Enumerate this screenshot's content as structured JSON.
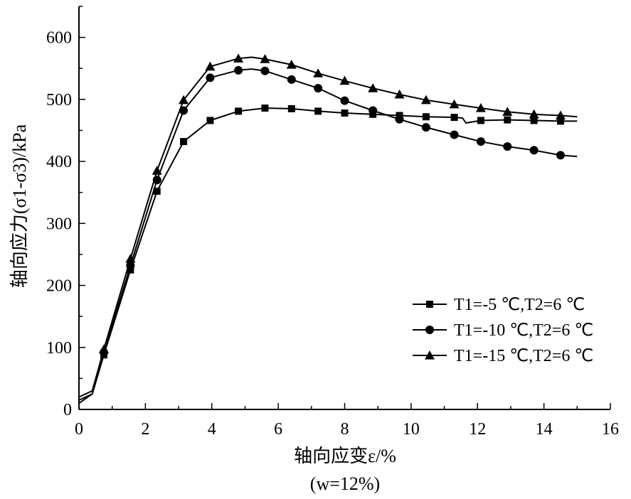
{
  "chart_data": {
    "type": "line",
    "xlabel": "轴向应变ε/%",
    "xlabel_note": "(w=12%)",
    "ylabel": "轴向应力(σ1-σ3)/kPa",
    "xlim": [
      0,
      16
    ],
    "ylim": [
      0,
      650
    ],
    "xticks": [
      0,
      2,
      4,
      6,
      8,
      10,
      12,
      14,
      16
    ],
    "yticks": [
      0,
      100,
      200,
      300,
      400,
      500,
      600
    ],
    "grid": false,
    "legend_position": "right",
    "series": [
      {
        "name": "T1=-5 ℃,T2=6 ℃",
        "marker": "square",
        "x": [
          0,
          0.4,
          0.75,
          1.55,
          2.35,
          3.15,
          3.95,
          4.8,
          5.6,
          6.4,
          7.2,
          8.0,
          8.85,
          9.65,
          10.45,
          11.3,
          11.55,
          11.65,
          12.1,
          12.9,
          13.7,
          14.5,
          15.0
        ],
        "y": [
          10,
          25,
          88,
          225,
          352,
          432,
          466,
          481,
          486,
          485,
          481,
          478,
          476,
          474,
          472,
          471,
          470,
          462,
          466,
          467,
          466,
          465,
          465
        ],
        "marker_points": [
          [
            0.75,
            88
          ],
          [
            1.55,
            225
          ],
          [
            2.35,
            352
          ],
          [
            3.15,
            432
          ],
          [
            3.95,
            466
          ],
          [
            4.8,
            481
          ],
          [
            5.6,
            486
          ],
          [
            6.4,
            485
          ],
          [
            7.2,
            481
          ],
          [
            8.0,
            478
          ],
          [
            8.85,
            476
          ],
          [
            9.65,
            474
          ],
          [
            10.45,
            472
          ],
          [
            11.3,
            471
          ],
          [
            12.1,
            466
          ],
          [
            12.9,
            467
          ],
          [
            13.7,
            466
          ],
          [
            14.5,
            465
          ]
        ]
      },
      {
        "name": "T1=-10 ℃,T2=6 ℃",
        "marker": "circle",
        "x": [
          0,
          0.4,
          0.75,
          1.55,
          2.35,
          3.15,
          3.95,
          4.8,
          5.2,
          5.6,
          6.4,
          7.2,
          8.0,
          8.85,
          9.65,
          10.45,
          11.3,
          12.1,
          12.9,
          13.7,
          14.5,
          15.0
        ],
        "y": [
          15,
          25,
          92,
          232,
          370,
          482,
          535,
          547,
          549,
          546,
          532,
          518,
          498,
          482,
          468,
          455,
          443,
          432,
          424,
          418,
          410,
          408
        ],
        "marker_points": [
          [
            0.75,
            92
          ],
          [
            1.55,
            232
          ],
          [
            2.35,
            370
          ],
          [
            3.15,
            482
          ],
          [
            3.95,
            535
          ],
          [
            4.8,
            547
          ],
          [
            5.6,
            546
          ],
          [
            6.4,
            532
          ],
          [
            7.2,
            518
          ],
          [
            8.0,
            498
          ],
          [
            8.85,
            482
          ],
          [
            9.65,
            468
          ],
          [
            10.45,
            455
          ],
          [
            11.3,
            443
          ],
          [
            12.1,
            432
          ],
          [
            12.9,
            424
          ],
          [
            13.7,
            418
          ],
          [
            14.5,
            410
          ]
        ]
      },
      {
        "name": "T1=-15 ℃,T2=6 ℃",
        "marker": "triangle",
        "x": [
          0,
          0.4,
          0.75,
          1.55,
          2.35,
          3.15,
          3.95,
          4.8,
          5.2,
          5.6,
          6.4,
          7.2,
          8.0,
          8.85,
          9.65,
          10.45,
          11.3,
          12.1,
          12.9,
          13.7,
          14.5,
          15.0
        ],
        "y": [
          20,
          30,
          97,
          243,
          385,
          499,
          553,
          566,
          568,
          565,
          556,
          542,
          530,
          518,
          508,
          499,
          492,
          486,
          480,
          476,
          474,
          472
        ],
        "marker_points": [
          [
            0.75,
            97
          ],
          [
            1.55,
            243
          ],
          [
            2.35,
            385
          ],
          [
            3.15,
            499
          ],
          [
            3.95,
            553
          ],
          [
            4.8,
            566
          ],
          [
            5.6,
            565
          ],
          [
            6.4,
            556
          ],
          [
            7.2,
            542
          ],
          [
            8.0,
            530
          ],
          [
            8.85,
            518
          ],
          [
            9.65,
            508
          ],
          [
            10.45,
            499
          ],
          [
            11.3,
            492
          ],
          [
            12.1,
            486
          ],
          [
            12.9,
            480
          ],
          [
            13.7,
            476
          ],
          [
            14.5,
            474
          ]
        ]
      }
    ]
  }
}
